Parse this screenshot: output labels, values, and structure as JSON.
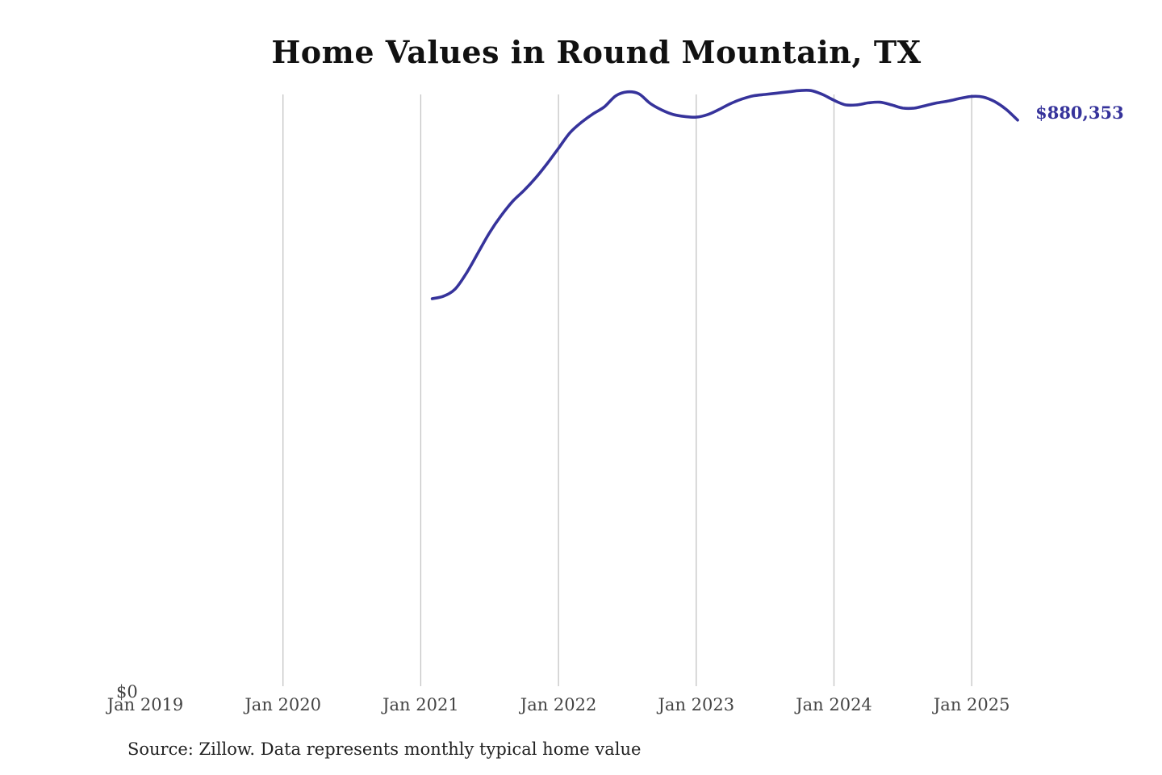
{
  "chart_data": {
    "type": "line",
    "title": "Home Values in Round Mountain, TX",
    "source_note": "Source: Zillow. Data represents monthly typical home value",
    "xlabel": "",
    "ylabel": "",
    "x_ticks": [
      "Jan 2019",
      "Jan 2020",
      "Jan 2021",
      "Jan 2022",
      "Jan 2023",
      "Jan 2024",
      "Jan 2025"
    ],
    "y_tick_label": "$0",
    "ylim": [
      0,
      920000
    ],
    "xlim": [
      "2019-01",
      "2025-06"
    ],
    "grid": "vertical",
    "line_color": "#36339b",
    "end_label": "$880,353",
    "series": [
      {
        "x": [
          "2021-02",
          "2021-03",
          "2021-04",
          "2021-05",
          "2021-06",
          "2021-07",
          "2021-08",
          "2021-09",
          "2021-10",
          "2021-11",
          "2021-12",
          "2022-01",
          "2022-02",
          "2022-03",
          "2022-04",
          "2022-05",
          "2022-06",
          "2022-07",
          "2022-08",
          "2022-09",
          "2022-10",
          "2022-11",
          "2022-12",
          "2023-01",
          "2023-02",
          "2023-03",
          "2023-04",
          "2023-05",
          "2023-06",
          "2023-07",
          "2023-08",
          "2023-09",
          "2023-10",
          "2023-11",
          "2023-12",
          "2024-01",
          "2024-02",
          "2024-03",
          "2024-04",
          "2024-05",
          "2024-06",
          "2024-07",
          "2024-08",
          "2024-09",
          "2024-10",
          "2024-11",
          "2024-12",
          "2025-01",
          "2025-02",
          "2025-03",
          "2025-04",
          "2025-05"
        ],
        "values": [
          605000,
          609000,
          620000,
          645000,
          676000,
          707000,
          733000,
          755000,
          772000,
          791000,
          813000,
          837000,
          861000,
          877000,
          890000,
          901000,
          918000,
          924000,
          921000,
          906000,
          896000,
          889000,
          886000,
          885000,
          889000,
          897000,
          906000,
          913000,
          918000,
          920000,
          922000,
          924000,
          926000,
          926000,
          920000,
          911000,
          904000,
          904000,
          907000,
          908000,
          904000,
          899000,
          899000,
          903000,
          907000,
          910000,
          914000,
          917000,
          916000,
          909000,
          897000,
          880353
        ]
      }
    ]
  }
}
